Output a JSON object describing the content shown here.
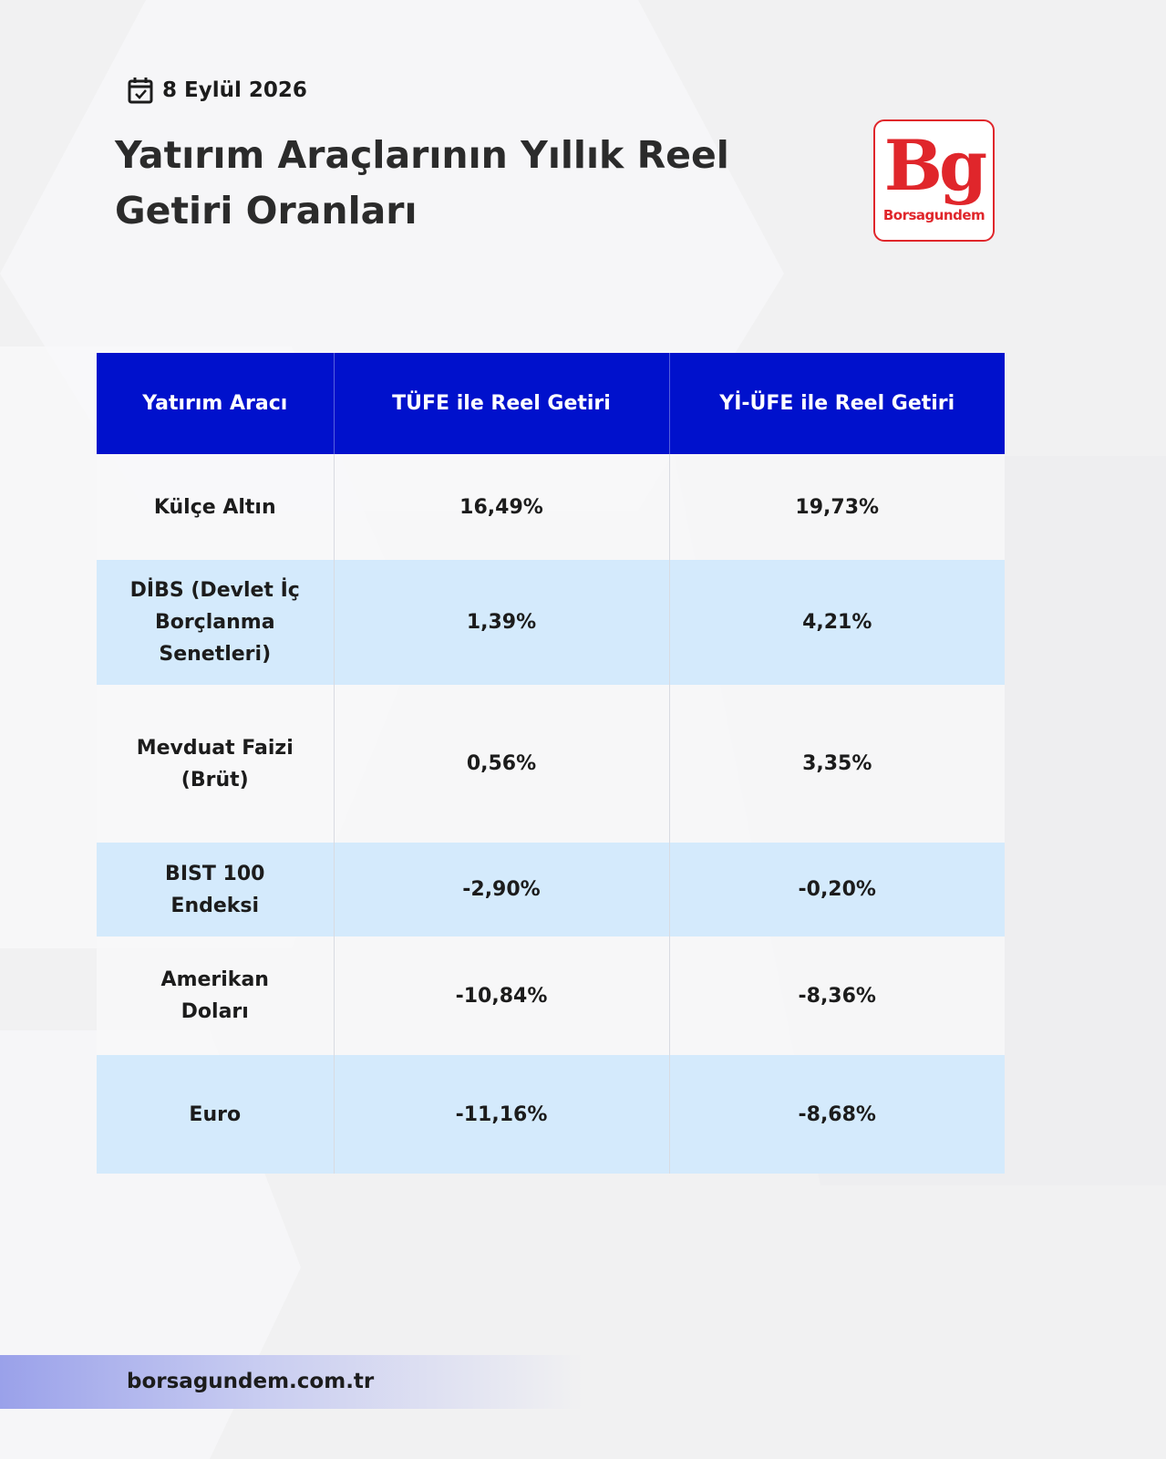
{
  "header": {
    "date": "8 Eylül 2026",
    "title": "Yatırım Araçlarının Yıllık Reel Getiri Oranları"
  },
  "logo": {
    "mark": "Bg",
    "name": "Borsagundem"
  },
  "table": {
    "columns": [
      "Yatırım Aracı",
      "TÜFE ile Reel Getiri",
      "Yİ-ÜFE ile Reel Getiri"
    ],
    "rows": [
      [
        "Külçe Altın",
        "16,49%",
        "19,73%"
      ],
      [
        "DİBS (Devlet İç Borçlanma Senetleri)",
        "1,39%",
        "4,21%"
      ],
      [
        "Mevduat Faizi (Brüt)",
        "0,56%",
        "3,35%"
      ],
      [
        "BIST 100 Endeksi",
        "-2,90%",
        "-0,20%"
      ],
      [
        "Amerikan Doları",
        "-10,84%",
        "-8,36%"
      ],
      [
        "Euro",
        "-11,16%",
        "-8,68%"
      ]
    ]
  },
  "footer": {
    "url": "borsagundem.com.tr"
  }
}
